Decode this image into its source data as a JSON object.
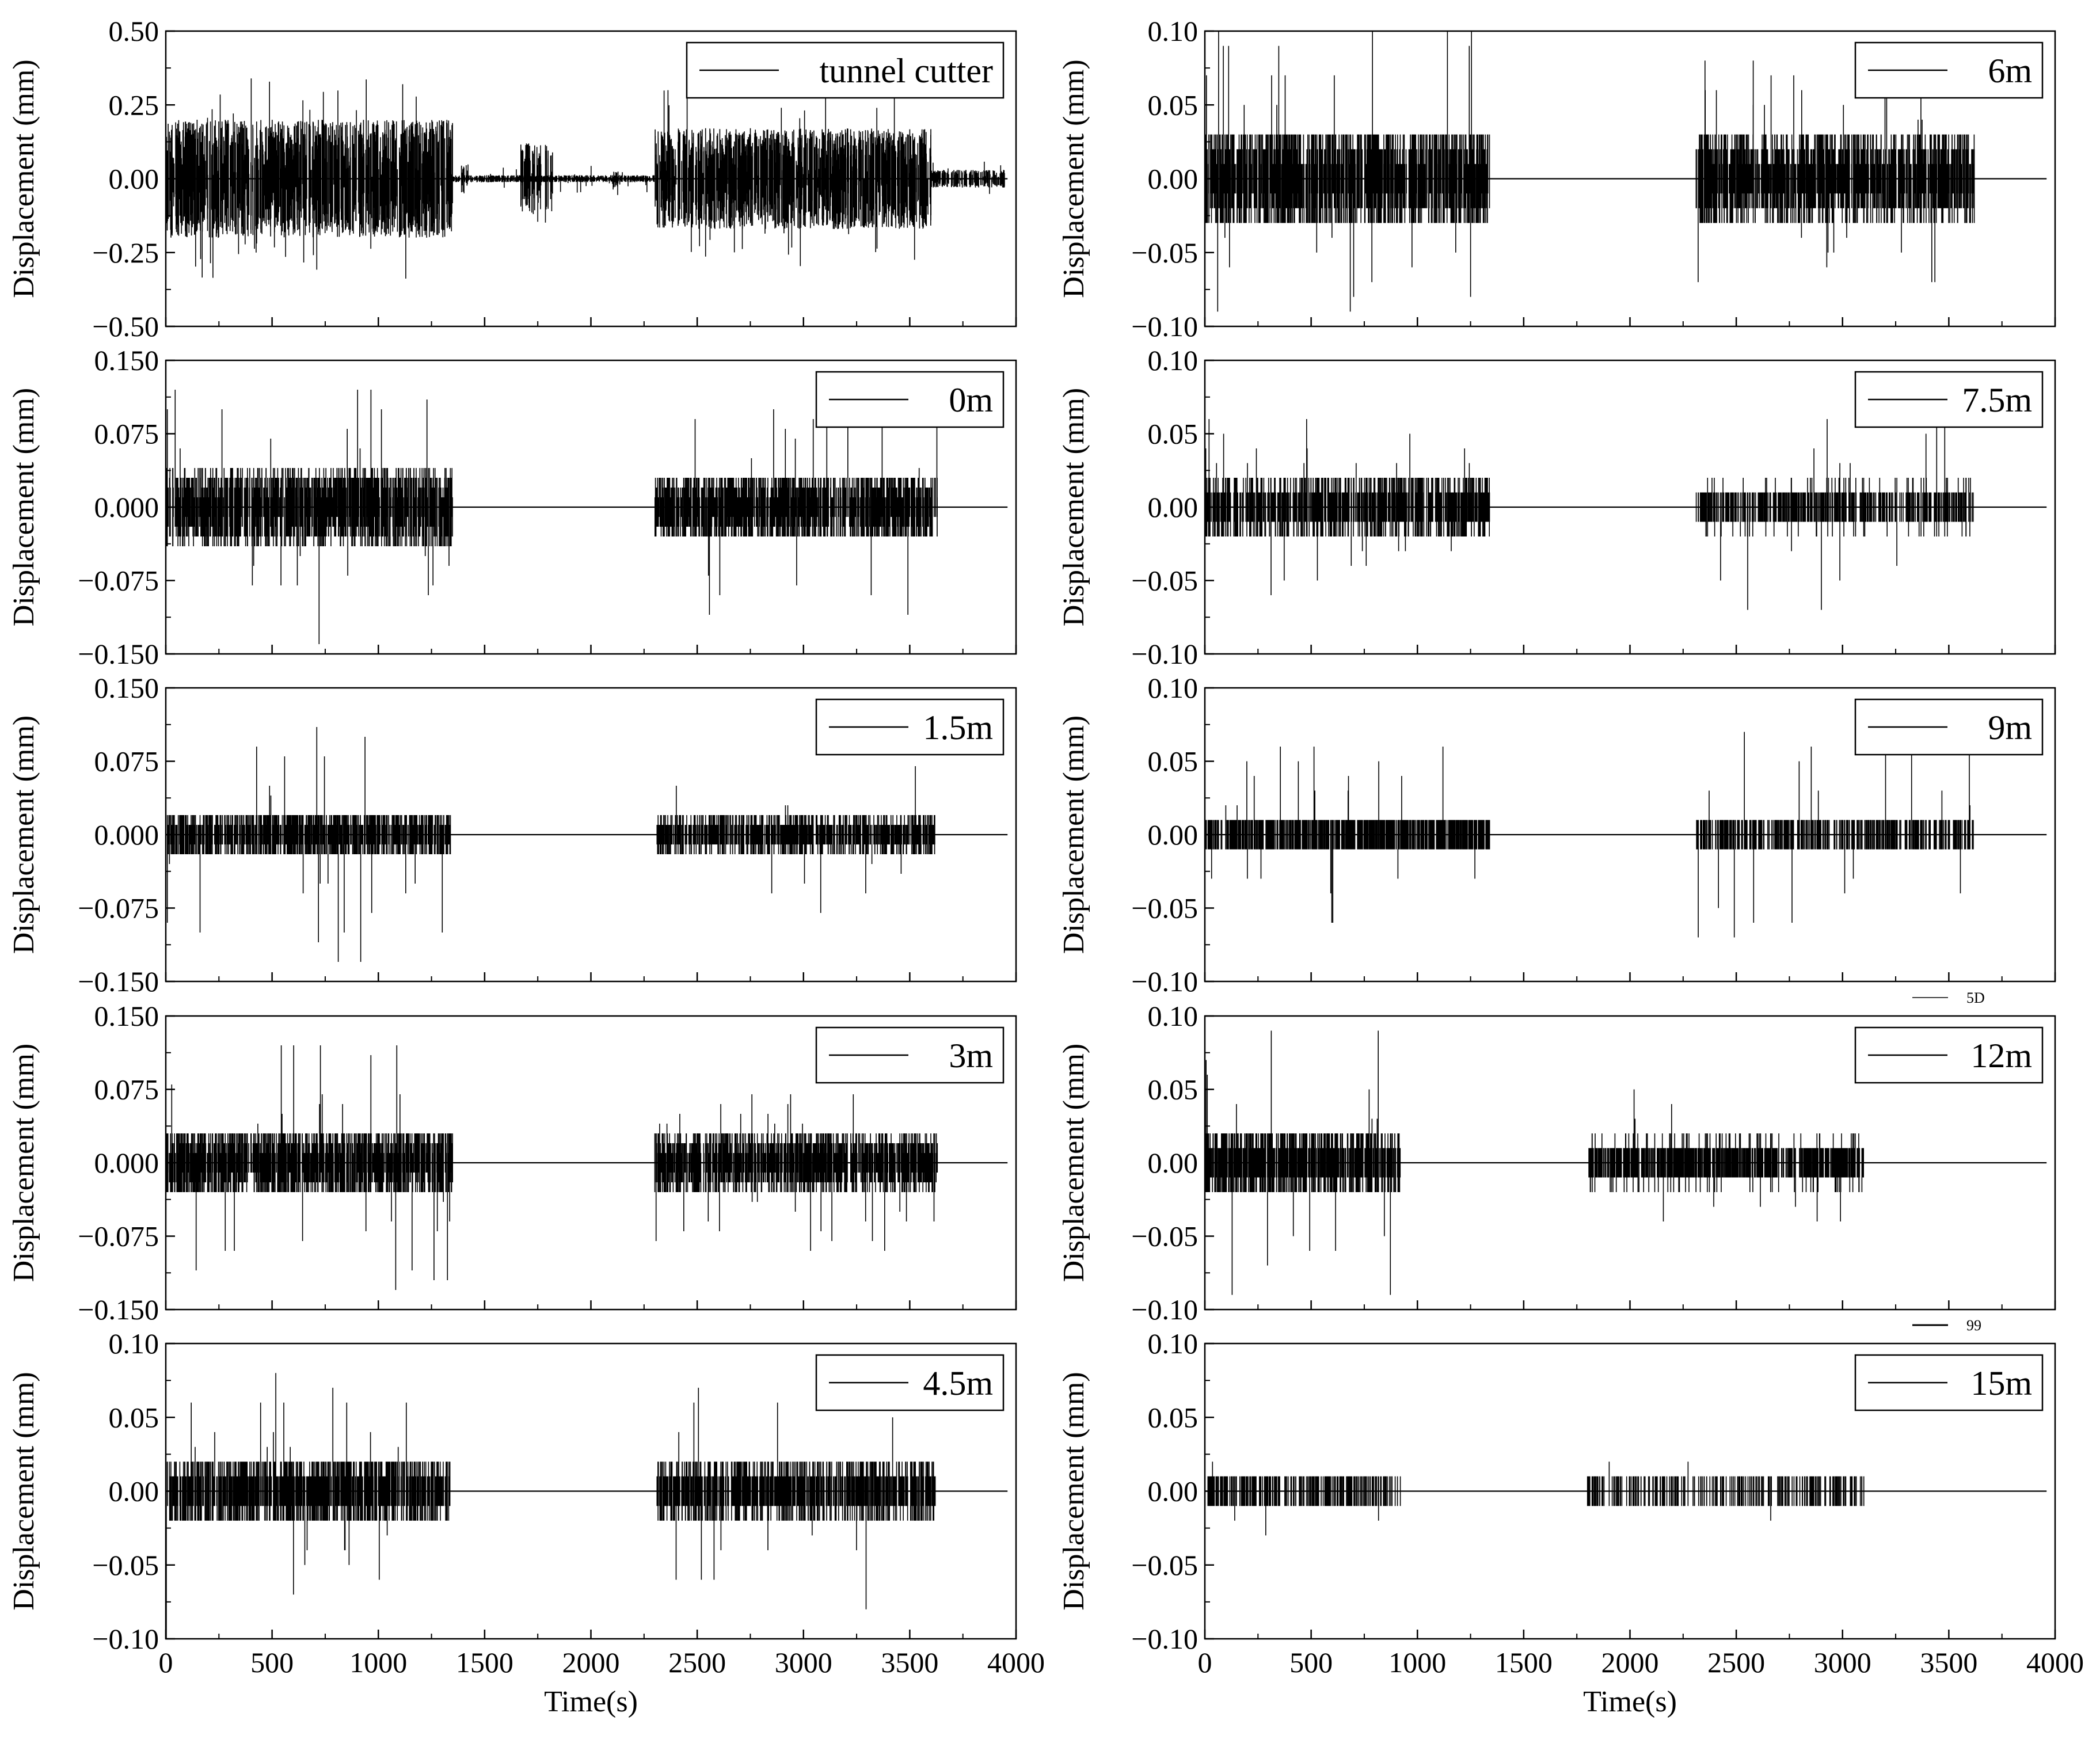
{
  "chart_data": {
    "type": "line",
    "layout": "5 rows x 2 columns of stacked time-series panels",
    "time_axis": {
      "label": "Time(s)",
      "xlim": [
        0,
        4000
      ],
      "ticks": [
        "0",
        "500",
        "1000",
        "1500",
        "2000",
        "2500",
        "3000",
        "3500",
        "4000"
      ]
    },
    "panels": [
      {
        "legend": "tunnel cutter",
        "ylabel": "Displacement (mm)",
        "ylim": [
          -0.5,
          0.5
        ],
        "y_tick_values": [
          -0.5,
          -0.25,
          0,
          0.25,
          0.5
        ],
        "y_ticks": [
          "−0.50",
          "−0.25",
          "0.00",
          "0.25",
          "0.50"
        ],
        "segments": [
          {
            "start": 0,
            "end": 1350,
            "amplitude": 0.2,
            "peak": 0.34,
            "quantum": 0,
            "density": 1.0
          },
          {
            "start": 1350,
            "end": 2300,
            "amplitude": 0.012,
            "peak": 0.05,
            "quantum": 0,
            "density": 0.9
          },
          {
            "start": 1670,
            "end": 1820,
            "amplitude": 0.12,
            "peak": 0.32,
            "quantum": 0,
            "density": 0.6
          },
          {
            "start": 1390,
            "end": 1420,
            "amplitude": 0.05,
            "peak": 0.12,
            "quantum": 0,
            "density": 0.5
          },
          {
            "start": 2100,
            "end": 2140,
            "amplitude": 0.03,
            "peak": 0.06,
            "quantum": 0,
            "density": 0.5
          },
          {
            "start": 2300,
            "end": 3600,
            "amplitude": 0.17,
            "peak": 0.3,
            "quantum": 0,
            "density": 1.0
          },
          {
            "start": 3600,
            "end": 3950,
            "amplitude": 0.03,
            "peak": 0.06,
            "quantum": 0,
            "density": 0.9
          }
        ]
      },
      {
        "legend": "6m",
        "ylabel": "Displacement (mm)",
        "ylim": [
          -0.1,
          0.1
        ],
        "y_tick_values": [
          -0.1,
          -0.05,
          0,
          0.05,
          0.1
        ],
        "y_ticks": [
          "−0.10",
          "−0.05",
          "0.00",
          "0.05",
          "0.10"
        ],
        "segments": [
          {
            "start": 0,
            "end": 1340,
            "amplitude": 0.035,
            "peak": 0.1,
            "quantum": 0.01,
            "density": 1.0
          },
          {
            "start": 2310,
            "end": 3620,
            "amplitude": 0.03,
            "peak": 0.09,
            "quantum": 0.01,
            "density": 1.0
          }
        ]
      },
      {
        "legend": "0m",
        "ylabel": "Displacement (mm)",
        "ylim": [
          -0.15,
          0.15
        ],
        "y_tick_values": [
          -0.15,
          -0.075,
          0,
          0.075,
          0.15
        ],
        "y_ticks": [
          "−0.150",
          "−0.075",
          "0.000",
          "0.075",
          "0.150"
        ],
        "segments": [
          {
            "start": 0,
            "end": 1350,
            "amplitude": 0.04,
            "peak": 0.14,
            "quantum": 0.01,
            "density": 1.0
          },
          {
            "start": 2300,
            "end": 3630,
            "amplitude": 0.035,
            "peak": 0.11,
            "quantum": 0.01,
            "density": 1.0
          }
        ]
      },
      {
        "legend": "7.5m",
        "ylabel": "Displacement (mm)",
        "ylim": [
          -0.1,
          0.1
        ],
        "y_tick_values": [
          -0.1,
          -0.05,
          0,
          0.05,
          0.1
        ],
        "y_ticks": [
          "−0.10",
          "−0.05",
          "0.00",
          "0.05",
          "0.10"
        ],
        "segments": [
          {
            "start": 0,
            "end": 1340,
            "amplitude": 0.02,
            "peak": 0.06,
            "quantum": 0.01,
            "density": 0.85
          },
          {
            "start": 2310,
            "end": 3620,
            "amplitude": 0.016,
            "peak": 0.07,
            "quantum": 0.01,
            "density": 0.55
          }
        ]
      },
      {
        "legend": "1.5m",
        "ylabel": "Displacement (mm)",
        "ylim": [
          -0.15,
          0.15
        ],
        "y_tick_values": [
          -0.15,
          -0.075,
          0,
          0.075,
          0.15
        ],
        "y_ticks": [
          "−0.150",
          "−0.075",
          "0.000",
          "0.075",
          "0.150"
        ],
        "segments": [
          {
            "start": 0,
            "end": 1340,
            "amplitude": 0.025,
            "peak": 0.13,
            "quantum": 0.01,
            "density": 0.9
          },
          {
            "start": 2310,
            "end": 3620,
            "amplitude": 0.02,
            "peak": 0.08,
            "quantum": 0.01,
            "density": 0.8
          }
        ]
      },
      {
        "legend": "9m",
        "ylabel": "Displacement (mm)",
        "ylim": [
          -0.1,
          0.1
        ],
        "y_tick_values": [
          -0.1,
          -0.05,
          0,
          0.05,
          0.1
        ],
        "y_ticks": [
          "−0.10",
          "−0.05",
          "0.00",
          "0.05",
          "0.10"
        ],
        "segments": [
          {
            "start": 0,
            "end": 1340,
            "amplitude": 0.015,
            "peak": 0.07,
            "quantum": 0.01,
            "density": 0.8
          },
          {
            "start": 2310,
            "end": 3620,
            "amplitude": 0.013,
            "peak": 0.07,
            "quantum": 0.01,
            "density": 0.5
          }
        ]
      },
      {
        "legend": "3m",
        "ylabel": "Displacement (mm)",
        "ylim": [
          -0.15,
          0.15
        ],
        "y_tick_values": [
          -0.15,
          -0.075,
          0,
          0.075,
          0.15
        ],
        "y_ticks": [
          "−0.150",
          "−0.075",
          "0.000",
          "0.075",
          "0.150"
        ],
        "segments": [
          {
            "start": 0,
            "end": 1350,
            "amplitude": 0.035,
            "peak": 0.13,
            "quantum": 0.01,
            "density": 1.0
          },
          {
            "start": 2300,
            "end": 3630,
            "amplitude": 0.03,
            "peak": 0.09,
            "quantum": 0.01,
            "density": 1.0
          }
        ]
      },
      {
        "legend": "12m",
        "ylabel": "Displacement (mm)",
        "ylim": [
          -0.1,
          0.1
        ],
        "y_tick_values": [
          -0.1,
          -0.05,
          0,
          0.05,
          0.1
        ],
        "y_ticks": [
          "−0.10",
          "−0.05",
          "0.00",
          "0.05",
          "0.10"
        ],
        "segments": [
          {
            "start": 0,
            "end": 920,
            "amplitude": 0.022,
            "peak": 0.09,
            "quantum": 0.01,
            "density": 1.0
          },
          {
            "start": 1800,
            "end": 3100,
            "amplitude": 0.016,
            "peak": 0.05,
            "quantum": 0.01,
            "density": 0.85
          }
        ]
      },
      {
        "legend": "4.5m",
        "ylabel": "Displacement (mm)",
        "ylim": [
          -0.1,
          0.1
        ],
        "y_tick_values": [
          -0.1,
          -0.05,
          0,
          0.05,
          0.1
        ],
        "y_ticks": [
          "−0.10",
          "−0.05",
          "0.00",
          "0.05",
          "0.10"
        ],
        "segments": [
          {
            "start": 0,
            "end": 1340,
            "amplitude": 0.022,
            "peak": 0.1,
            "quantum": 0.01,
            "density": 0.95
          },
          {
            "start": 2310,
            "end": 3620,
            "amplitude": 0.02,
            "peak": 0.08,
            "quantum": 0.01,
            "density": 0.85
          }
        ]
      },
      {
        "legend": "15m",
        "ylabel": "Displacement (mm)",
        "ylim": [
          -0.1,
          0.1
        ],
        "y_tick_values": [
          -0.1,
          -0.05,
          0,
          0.05,
          0.1
        ],
        "y_ticks": [
          "−0.10",
          "−0.05",
          "0.00",
          "0.05",
          "0.10"
        ],
        "segments": [
          {
            "start": 0,
            "end": 920,
            "amplitude": 0.009,
            "peak": 0.03,
            "quantum": 0.01,
            "density": 0.45
          },
          {
            "start": 1800,
            "end": 3100,
            "amplitude": 0.009,
            "peak": 0.03,
            "quantum": 0.01,
            "density": 0.3
          }
        ]
      }
    ],
    "stray_labels": [
      "5D",
      "99"
    ],
    "colors": {
      "trace": "#000000",
      "axes": "#000000",
      "background": "#ffffff"
    }
  }
}
